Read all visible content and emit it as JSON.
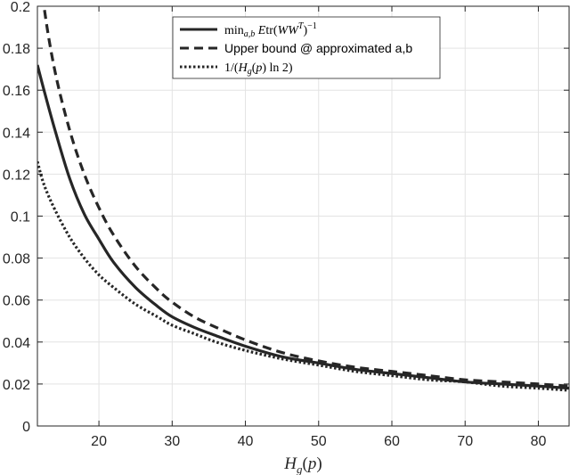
{
  "chart_data": {
    "type": "line",
    "xlabel": "H_g(p)",
    "ylabel": "",
    "xlim": [
      11.6,
      84.2
    ],
    "ylim": [
      0,
      0.2
    ],
    "grid": true,
    "legend_position": "top-center",
    "x_ticks": [
      20,
      30,
      40,
      50,
      60,
      70,
      80
    ],
    "y_ticks": [
      0,
      0.02,
      0.04,
      0.06,
      0.08,
      0.1,
      0.12,
      0.14,
      0.16,
      0.18,
      0.2
    ],
    "x_tick_labels": [
      "20",
      "30",
      "40",
      "50",
      "60",
      "70",
      "80"
    ],
    "y_tick_labels": [
      "0",
      "0.02",
      "0.04",
      "0.06",
      "0.08",
      "0.1",
      "0.12",
      "0.14",
      "0.16",
      "0.18",
      "0.2"
    ],
    "x": [
      11.6,
      12.5,
      14,
      16,
      18,
      20,
      22,
      25,
      28,
      30,
      33,
      36,
      40,
      45,
      50,
      55,
      60,
      65,
      70,
      75,
      80,
      84.2
    ],
    "series": [
      {
        "name": "min_{a,b} E tr(WW^T)^{-1}",
        "style": "solid",
        "values": [
          0.172,
          0.16,
          0.141,
          0.118,
          0.101,
          0.089,
          0.078,
          0.066,
          0.057,
          0.052,
          0.047,
          0.043,
          0.038,
          0.033,
          0.03,
          0.027,
          0.025,
          0.023,
          0.021,
          0.02,
          0.019,
          0.018
        ]
      },
      {
        "name": "Upper bound @ approximated a,b",
        "style": "dashed",
        "values": [
          0.232,
          0.2,
          0.169,
          0.141,
          0.12,
          0.104,
          0.091,
          0.076,
          0.065,
          0.059,
          0.052,
          0.047,
          0.041,
          0.035,
          0.031,
          0.028,
          0.026,
          0.024,
          0.022,
          0.021,
          0.02,
          0.019
        ]
      },
      {
        "name": "1/(H_g(p) ln 2)",
        "style": "dotted",
        "values": [
          0.126,
          0.115,
          0.103,
          0.09,
          0.08,
          0.072,
          0.066,
          0.058,
          0.052,
          0.048,
          0.044,
          0.04,
          0.036,
          0.032,
          0.029,
          0.026,
          0.024,
          0.022,
          0.021,
          0.019,
          0.018,
          0.017
        ]
      }
    ]
  }
}
